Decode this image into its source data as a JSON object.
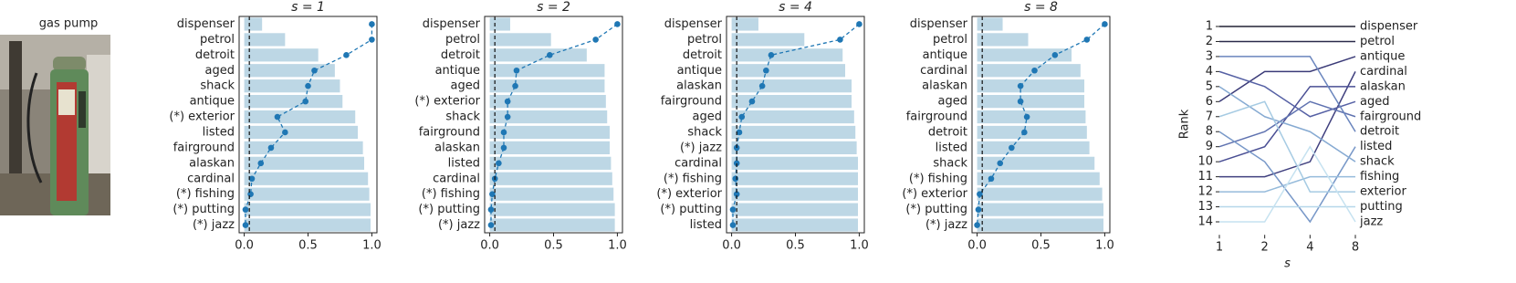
{
  "image": {
    "title": "gas pump"
  },
  "chart_data": [
    {
      "type": "bar",
      "title": "s = 1",
      "categories": [
        "dispenser",
        "petrol",
        "detroit",
        "aged",
        "shack",
        "antique",
        "(*) exterior",
        "listed",
        "fairground",
        "alaskan",
        "cardinal",
        "(*) fishing",
        "(*) putting",
        "(*) jazz"
      ],
      "values": [
        0.14,
        0.32,
        0.58,
        0.71,
        0.75,
        0.77,
        0.87,
        0.89,
        0.93,
        0.94,
        0.97,
        0.98,
        0.99,
        0.99
      ],
      "color": "#bdd7e5",
      "line_values": [
        1.0,
        1.0,
        0.8,
        0.55,
        0.5,
        0.48,
        0.26,
        0.32,
        0.21,
        0.13,
        0.06,
        0.05,
        0.01,
        0.01
      ],
      "line_color": "#1f77b4",
      "threshold": 0.04,
      "xlim": [
        -0.04,
        1.04
      ],
      "xticks": [
        {
          "value": 0,
          "label": "0.0"
        },
        {
          "value": 0.5,
          "label": "0.5"
        },
        {
          "value": 1,
          "label": "1.0"
        }
      ]
    },
    {
      "type": "bar",
      "title": "s = 2",
      "categories": [
        "dispenser",
        "petrol",
        "detroit",
        "antique",
        "aged",
        "(*) exterior",
        "shack",
        "fairground",
        "alaskan",
        "listed",
        "cardinal",
        "(*) fishing",
        "(*) putting",
        "(*) jazz"
      ],
      "values": [
        0.16,
        0.48,
        0.76,
        0.9,
        0.9,
        0.91,
        0.92,
        0.94,
        0.94,
        0.95,
        0.96,
        0.97,
        0.98,
        0.98
      ],
      "color": "#bdd7e5",
      "line_values": [
        1.0,
        0.83,
        0.47,
        0.21,
        0.2,
        0.14,
        0.14,
        0.11,
        0.11,
        0.07,
        0.04,
        0.02,
        0.01,
        0.01
      ],
      "line_color": "#1f77b4",
      "threshold": 0.04,
      "xlim": [
        -0.04,
        1.04
      ],
      "xticks": [
        {
          "value": 0,
          "label": "0.0"
        },
        {
          "value": 0.5,
          "label": "0.5"
        },
        {
          "value": 1,
          "label": "1.0"
        }
      ]
    },
    {
      "type": "bar",
      "title": "s = 4",
      "categories": [
        "dispenser",
        "petrol",
        "detroit",
        "antique",
        "alaskan",
        "fairground",
        "aged",
        "shack",
        "(*) jazz",
        "cardinal",
        "(*) fishing",
        "(*) exterior",
        "(*) putting",
        "listed"
      ],
      "values": [
        0.21,
        0.57,
        0.87,
        0.89,
        0.94,
        0.94,
        0.96,
        0.97,
        0.98,
        0.99,
        0.99,
        0.99,
        0.99,
        0.99
      ],
      "color": "#bdd7e5",
      "line_values": [
        1.0,
        0.85,
        0.31,
        0.27,
        0.24,
        0.16,
        0.08,
        0.06,
        0.04,
        0.04,
        0.03,
        0.04,
        0.01,
        0.01
      ],
      "line_color": "#1f77b4",
      "threshold": 0.04,
      "xlim": [
        -0.04,
        1.04
      ],
      "xticks": [
        {
          "value": 0,
          "label": "0.0"
        },
        {
          "value": 0.5,
          "label": "0.5"
        },
        {
          "value": 1,
          "label": "1.0"
        }
      ]
    },
    {
      "type": "bar",
      "title": "s = 8",
      "categories": [
        "dispenser",
        "petrol",
        "antique",
        "cardinal",
        "alaskan",
        "aged",
        "fairground",
        "detroit",
        "listed",
        "shack",
        "(*) fishing",
        "(*) exterior",
        "(*) putting",
        "(*) jazz"
      ],
      "values": [
        0.2,
        0.4,
        0.74,
        0.81,
        0.84,
        0.84,
        0.85,
        0.86,
        0.88,
        0.92,
        0.96,
        0.98,
        0.99,
        0.99
      ],
      "color": "#bdd7e5",
      "line_values": [
        1.0,
        0.86,
        0.61,
        0.45,
        0.34,
        0.34,
        0.39,
        0.37,
        0.27,
        0.18,
        0.11,
        0.02,
        0.01,
        0
      ],
      "line_color": "#1f77b4",
      "threshold": 0.04,
      "xlim": [
        -0.04,
        1.04
      ],
      "xticks": [
        {
          "value": 0,
          "label": "0.0"
        },
        {
          "value": 0.5,
          "label": "0.5"
        },
        {
          "value": 1,
          "label": "1.0"
        }
      ]
    },
    {
      "type": "line",
      "xlabel": "s",
      "ylabel": "Rank",
      "xscale": "log2",
      "x": [
        1,
        2,
        4,
        8
      ],
      "xlim": [
        1,
        8
      ],
      "xticks": [
        1,
        2,
        4,
        8
      ],
      "ylim": [
        14.5,
        0.5
      ],
      "yticks": [
        1,
        2,
        3,
        4,
        5,
        6,
        7,
        8,
        9,
        10,
        11,
        12,
        13,
        14
      ],
      "series": [
        {
          "name": "dispenser",
          "color": "#222233",
          "values": [
            1,
            1,
            1,
            1
          ]
        },
        {
          "name": "petrol",
          "color": "#2b2b4a",
          "values": [
            2,
            2,
            2,
            2
          ]
        },
        {
          "name": "antique",
          "color": "#3b3b78",
          "values": [
            6,
            4,
            4,
            3
          ]
        },
        {
          "name": "cardinal",
          "color": "#40407f",
          "values": [
            11,
            11,
            10,
            4
          ]
        },
        {
          "name": "alaskan",
          "color": "#4a4f94",
          "values": [
            10,
            9,
            5,
            5
          ]
        },
        {
          "name": "aged",
          "color": "#5560a4",
          "values": [
            4,
            5,
            7,
            6
          ]
        },
        {
          "name": "fairground",
          "color": "#5f72b0",
          "values": [
            9,
            8,
            6,
            7
          ]
        },
        {
          "name": "detroit",
          "color": "#6a85bd",
          "values": [
            3,
            3,
            3,
            8
          ]
        },
        {
          "name": "listed",
          "color": "#7898c8",
          "values": [
            8,
            10,
            14,
            9
          ]
        },
        {
          "name": "shack",
          "color": "#86aad2",
          "values": [
            5,
            7,
            8,
            10
          ]
        },
        {
          "name": "fishing",
          "color": "#96bbdb",
          "values": [
            12,
            12,
            11,
            11
          ]
        },
        {
          "name": "exterior",
          "color": "#a6cbe3",
          "values": [
            7,
            6,
            12,
            12
          ]
        },
        {
          "name": "putting",
          "color": "#b6d7ea",
          "values": [
            13,
            13,
            13,
            13
          ]
        },
        {
          "name": "jazz",
          "color": "#c6e2f0",
          "values": [
            14,
            14,
            9,
            14
          ]
        }
      ]
    }
  ]
}
